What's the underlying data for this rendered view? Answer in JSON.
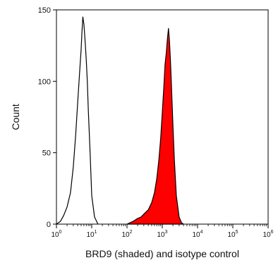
{
  "colors": {
    "sample_fill": "#ff0000",
    "sample_line": "#000000",
    "control_line": "#000000",
    "axis": "#000000"
  },
  "chart_data": {
    "type": "area",
    "xlabel": "BRD9 (shaded) and isotype control",
    "ylabel": "Count",
    "x_scale": "log",
    "xlim": [
      1,
      1000000
    ],
    "ylim": [
      0,
      150
    ],
    "x_ticks": [
      {
        "value": 1,
        "exp": "0"
      },
      {
        "value": 10,
        "exp": "1"
      },
      {
        "value": 100,
        "exp": "2"
      },
      {
        "value": 1000,
        "exp": "3"
      },
      {
        "value": 10000,
        "exp": "4"
      },
      {
        "value": 100000,
        "exp": "5"
      },
      {
        "value": 1000000,
        "exp": "6"
      }
    ],
    "y_ticks": [
      "0",
      "50",
      "100",
      "150"
    ],
    "grid": false,
    "series": [
      {
        "role": "isotype-control",
        "style": "outline",
        "x": [
          1,
          1.3,
          1.6,
          2,
          2.5,
          3,
          3.5,
          4,
          4.5,
          5,
          5.3,
          5.6,
          6,
          6.5,
          7,
          7.5,
          8,
          9,
          10,
          12,
          15
        ],
        "y": [
          0,
          2,
          6,
          12,
          22,
          40,
          62,
          85,
          105,
          122,
          135,
          145,
          140,
          128,
          115,
          100,
          80,
          50,
          20,
          5,
          0
        ]
      },
      {
        "role": "brd9",
        "style": "filled",
        "x": [
          100,
          150,
          200,
          250,
          300,
          400,
          500,
          600,
          700,
          800,
          900,
          1000,
          1100,
          1200,
          1300,
          1400,
          1500,
          1600,
          1700,
          1800,
          2000,
          2200,
          2500,
          3000,
          3500,
          4000
        ],
        "y": [
          0,
          2,
          4,
          5,
          7,
          10,
          15,
          22,
          32,
          45,
          60,
          78,
          95,
          112,
          120,
          130,
          137,
          128,
          115,
          100,
          70,
          45,
          20,
          5,
          1,
          0
        ]
      }
    ]
  }
}
